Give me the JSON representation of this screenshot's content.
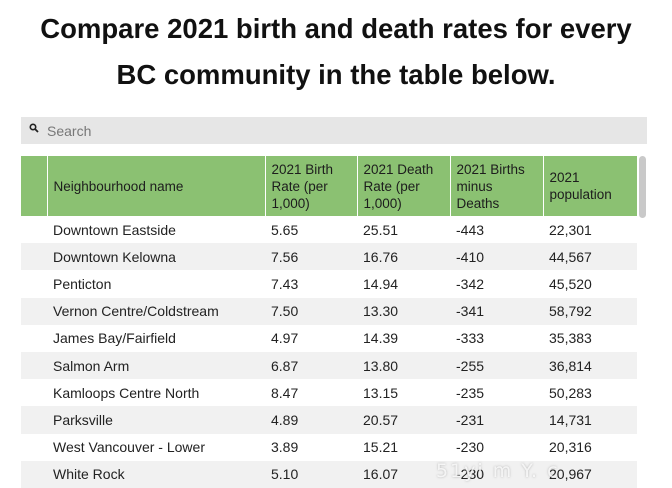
{
  "headline": {
    "line1": "Compare 2021 birth and death rates for every",
    "line2": "BC community in the table below."
  },
  "search": {
    "placeholder": "Search",
    "value": ""
  },
  "table": {
    "headers": [
      "",
      "Neighbourhood name",
      "2021 Birth Rate (per 1,000)",
      "2021 Death Rate (per 1,000)",
      "2021 Births minus Deaths",
      "2021 population"
    ],
    "rows": [
      [
        "",
        "Downtown Eastside",
        "5.65",
        "25.51",
        "-443",
        "22,301"
      ],
      [
        "",
        "Downtown Kelowna",
        "7.56",
        "16.76",
        "-410",
        "44,567"
      ],
      [
        "",
        "Penticton",
        "7.43",
        "14.94",
        "-342",
        "45,520"
      ],
      [
        "",
        "Vernon Centre/Coldstream",
        "7.50",
        "13.30",
        "-341",
        "58,792"
      ],
      [
        "",
        "James Bay/Fairfield",
        "4.97",
        "14.39",
        "-333",
        "35,383"
      ],
      [
        "",
        "Salmon Arm",
        "6.87",
        "13.80",
        "-255",
        "36,814"
      ],
      [
        "",
        "Kamloops Centre North",
        "8.47",
        "13.15",
        "-235",
        "50,283"
      ],
      [
        "",
        "Parksville",
        "4.89",
        "20.57",
        "-231",
        "14,731"
      ],
      [
        "",
        "West Vancouver - Lower",
        "3.89",
        "15.21",
        "-230",
        "20,316"
      ],
      [
        "",
        "White Rock",
        "5.10",
        "16.07",
        "-230",
        "20,967"
      ]
    ]
  },
  "watermark": "51yi m  Y. c",
  "colors": {
    "header_bg": "#8bc172",
    "search_bg": "#e6e6e6",
    "stripe": "#f1f1f1"
  }
}
